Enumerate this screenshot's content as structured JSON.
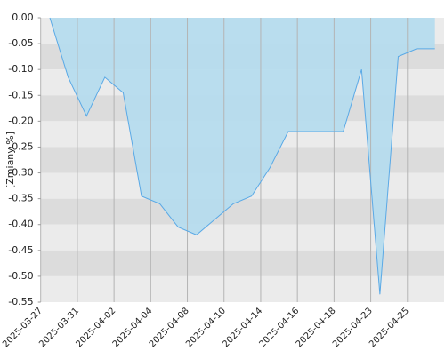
{
  "chart_data": {
    "type": "area",
    "y_label": "[Zmiany %]",
    "categories": [
      "2025-03-27",
      null,
      "2025-03-31",
      null,
      "2025-04-02",
      null,
      "2025-04-04",
      null,
      "2025-04-08",
      null,
      "2025-04-10",
      null,
      "2025-04-14",
      null,
      "2025-04-16",
      null,
      "2025-04-18",
      null,
      "2025-04-23",
      null,
      "2025-04-25",
      null
    ],
    "values": [
      0,
      -0.115,
      -0.19,
      -0.115,
      -0.145,
      -0.345,
      -0.36,
      -0.405,
      -0.42,
      -0.39,
      -0.36,
      -0.345,
      -0.29,
      -0.22,
      -0.22,
      -0.22,
      -0.22,
      -0.1,
      -0.535,
      -0.075,
      -0.06,
      -0.06
    ],
    "color": "#5aa9e6",
    "fill": "#b4dcee",
    "ylim": [
      -0.55,
      0
    ],
    "yticks": [
      {
        "value": 0,
        "label": "0.00"
      },
      -0.05,
      {
        "value": -0.1,
        "label": "-0.10"
      },
      -0.15,
      {
        "value": -0.2,
        "label": "-0.20"
      },
      -0.25,
      {
        "value": -0.3,
        "label": "-0.30"
      },
      -0.35,
      {
        "value": -0.4,
        "label": "-0.40"
      },
      -0.45,
      {
        "value": -0.5,
        "label": "-0.50"
      },
      -0.55
    ],
    "grid": true
  }
}
